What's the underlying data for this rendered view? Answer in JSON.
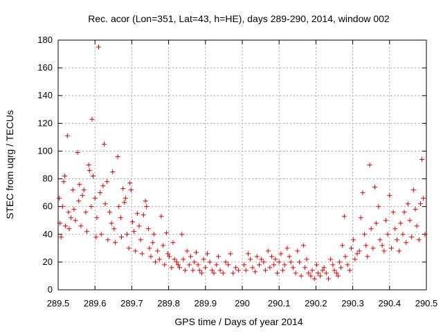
{
  "chart_data": {
    "type": "scatter",
    "title": "Rec. acor (Lon=351, Lat=43, h=HE), days 289-290, 2014, window 002",
    "xlabel": "GPS time / Days of year 2014",
    "ylabel": "STEC from uqrg / TECUs",
    "xlim": [
      289.5,
      290.5
    ],
    "ylim": [
      0,
      180
    ],
    "xticks": [
      289.5,
      289.6,
      289.7,
      289.8,
      289.9,
      290,
      290.1,
      290.2,
      290.3,
      290.4,
      290.5
    ],
    "xtick_labels": [
      "289.5",
      "289.6",
      "289.7",
      "289.8",
      "289.9",
      "290",
      "290.1",
      "290.2",
      "290.3",
      "290.4",
      "290.5"
    ],
    "yticks": [
      0,
      20,
      40,
      60,
      80,
      100,
      120,
      140,
      160,
      180
    ],
    "ytick_labels": [
      "0",
      "20",
      "40",
      "60",
      "80",
      "100",
      "120",
      "140",
      "160",
      "180"
    ],
    "grid": true,
    "marker": "plus",
    "color": "#e00000",
    "series": [
      {
        "name": "STEC",
        "points": [
          [
            289.503,
            66
          ],
          [
            289.505,
            48
          ],
          [
            289.508,
            38
          ],
          [
            289.512,
            60
          ],
          [
            289.515,
            78
          ],
          [
            289.518,
            82
          ],
          [
            289.52,
            46
          ],
          [
            289.525,
            111
          ],
          [
            289.528,
            56
          ],
          [
            289.53,
            44
          ],
          [
            289.535,
            52
          ],
          [
            289.54,
            72
          ],
          [
            289.543,
            58
          ],
          [
            289.547,
            50
          ],
          [
            289.553,
            99
          ],
          [
            289.556,
            64
          ],
          [
            289.558,
            76
          ],
          [
            289.562,
            46
          ],
          [
            289.566,
            68
          ],
          [
            289.57,
            72
          ],
          [
            289.575,
            56
          ],
          [
            289.578,
            42
          ],
          [
            289.583,
            90
          ],
          [
            289.585,
            86
          ],
          [
            289.59,
            60
          ],
          [
            289.592,
            123
          ],
          [
            289.595,
            82
          ],
          [
            289.6,
            66
          ],
          [
            289.603,
            38
          ],
          [
            289.605,
            52
          ],
          [
            289.61,
            175
          ],
          [
            289.614,
            70
          ],
          [
            289.617,
            40
          ],
          [
            289.622,
            75
          ],
          [
            289.625,
            105
          ],
          [
            289.628,
            62
          ],
          [
            289.633,
            78
          ],
          [
            289.635,
            36
          ],
          [
            289.64,
            56
          ],
          [
            289.645,
            48
          ],
          [
            289.648,
            85
          ],
          [
            289.652,
            44
          ],
          [
            289.655,
            34
          ],
          [
            289.662,
            96
          ],
          [
            289.665,
            60
          ],
          [
            289.67,
            52
          ],
          [
            289.672,
            38
          ],
          [
            289.676,
            73
          ],
          [
            289.68,
            63
          ],
          [
            289.683,
            66
          ],
          [
            289.687,
            40
          ],
          [
            289.692,
            30
          ],
          [
            289.695,
            77
          ],
          [
            289.698,
            72
          ],
          [
            289.702,
            49
          ],
          [
            289.706,
            42
          ],
          [
            289.71,
            28
          ],
          [
            289.715,
            55
          ],
          [
            289.72,
            46
          ],
          [
            289.724,
            36
          ],
          [
            289.728,
            26
          ],
          [
            289.732,
            54
          ],
          [
            289.737,
            64
          ],
          [
            289.74,
            60
          ],
          [
            289.745,
            44
          ],
          [
            289.748,
            30
          ],
          [
            289.752,
            24
          ],
          [
            289.757,
            34
          ],
          [
            289.76,
            40
          ],
          [
            289.764,
            20
          ],
          [
            289.77,
            28
          ],
          [
            289.775,
            22
          ],
          [
            289.78,
            53
          ],
          [
            289.785,
            32
          ],
          [
            289.789,
            18
          ],
          [
            289.794,
            41
          ],
          [
            289.798,
            26
          ],
          [
            289.802,
            24
          ],
          [
            289.808,
            16
          ],
          [
            289.812,
            34
          ],
          [
            289.816,
            22
          ],
          [
            289.822,
            20
          ],
          [
            289.826,
            18
          ],
          [
            289.83,
            16
          ],
          [
            289.836,
            40
          ],
          [
            289.84,
            22
          ],
          [
            289.845,
            14
          ],
          [
            289.85,
            28
          ],
          [
            289.856,
            18
          ],
          [
            289.86,
            24
          ],
          [
            289.866,
            14
          ],
          [
            289.87,
            20
          ],
          [
            289.875,
            27
          ],
          [
            289.88,
            18
          ],
          [
            289.884,
            14
          ],
          [
            289.89,
            12
          ],
          [
            289.895,
            22
          ],
          [
            289.9,
            16
          ],
          [
            289.905,
            26
          ],
          [
            289.912,
            20
          ],
          [
            289.918,
            14
          ],
          [
            289.923,
            12
          ],
          [
            289.93,
            18
          ],
          [
            289.935,
            24
          ],
          [
            289.94,
            14
          ],
          [
            289.948,
            12
          ],
          [
            289.955,
            20
          ],
          [
            289.962,
            18
          ],
          [
            289.968,
            26
          ],
          [
            289.975,
            12
          ],
          [
            289.982,
            16
          ],
          [
            289.99,
            14
          ],
          [
            290.005,
            18
          ],
          [
            290.01,
            14
          ],
          [
            290.016,
            26
          ],
          [
            290.022,
            22
          ],
          [
            290.028,
            16
          ],
          [
            290.035,
            13
          ],
          [
            290.04,
            24
          ],
          [
            290.046,
            18
          ],
          [
            290.052,
            22
          ],
          [
            290.058,
            20
          ],
          [
            290.063,
            14
          ],
          [
            290.07,
            28
          ],
          [
            290.075,
            16
          ],
          [
            290.08,
            24
          ],
          [
            290.086,
            18
          ],
          [
            290.09,
            22
          ],
          [
            290.095,
            12
          ],
          [
            290.1,
            20
          ],
          [
            290.105,
            26
          ],
          [
            290.11,
            14
          ],
          [
            290.115,
            18
          ],
          [
            290.122,
            30
          ],
          [
            290.128,
            24
          ],
          [
            290.132,
            20
          ],
          [
            290.138,
            16
          ],
          [
            290.145,
            12
          ],
          [
            290.15,
            28
          ],
          [
            290.155,
            20
          ],
          [
            290.16,
            10
          ],
          [
            290.166,
            32
          ],
          [
            290.17,
            16
          ],
          [
            290.175,
            22
          ],
          [
            290.18,
            12
          ],
          [
            290.186,
            10
          ],
          [
            290.19,
            14
          ],
          [
            290.196,
            8
          ],
          [
            290.202,
            18
          ],
          [
            290.206,
            12
          ],
          [
            290.212,
            10
          ],
          [
            290.218,
            14
          ],
          [
            290.222,
            16
          ],
          [
            290.228,
            12
          ],
          [
            290.234,
            8
          ],
          [
            290.24,
            22
          ],
          [
            290.246,
            18
          ],
          [
            290.25,
            14
          ],
          [
            290.256,
            12
          ],
          [
            290.26,
            10
          ],
          [
            290.264,
            20
          ],
          [
            290.268,
            16
          ],
          [
            290.272,
            32
          ],
          [
            290.277,
            53
          ],
          [
            290.28,
            24
          ],
          [
            290.286,
            18
          ],
          [
            290.292,
            14
          ],
          [
            290.296,
            30
          ],
          [
            290.302,
            36
          ],
          [
            290.306,
            22
          ],
          [
            290.312,
            26
          ],
          [
            290.318,
            28
          ],
          [
            290.322,
            52
          ],
          [
            290.327,
            70
          ],
          [
            290.332,
            40
          ],
          [
            290.336,
            32
          ],
          [
            290.34,
            24
          ],
          [
            290.346,
            90
          ],
          [
            290.35,
            44
          ],
          [
            290.355,
            30
          ],
          [
            290.36,
            74
          ],
          [
            290.364,
            48
          ],
          [
            290.37,
            60
          ],
          [
            290.374,
            36
          ],
          [
            290.38,
            32
          ],
          [
            290.385,
            28
          ],
          [
            290.39,
            50
          ],
          [
            290.395,
            40
          ],
          [
            290.4,
            68
          ],
          [
            290.405,
            30
          ],
          [
            290.41,
            56
          ],
          [
            290.415,
            44
          ],
          [
            290.42,
            36
          ],
          [
            290.426,
            28
          ],
          [
            290.43,
            48
          ],
          [
            290.436,
            40
          ],
          [
            290.44,
            56
          ],
          [
            290.445,
            34
          ],
          [
            290.45,
            62
          ],
          [
            290.455,
            50
          ],
          [
            290.46,
            38
          ],
          [
            290.465,
            72
          ],
          [
            290.47,
            58
          ],
          [
            290.474,
            46
          ],
          [
            290.48,
            36
          ],
          [
            290.484,
            62
          ],
          [
            290.488,
            94
          ],
          [
            290.492,
            66
          ],
          [
            290.496,
            40
          ]
        ]
      }
    ]
  }
}
